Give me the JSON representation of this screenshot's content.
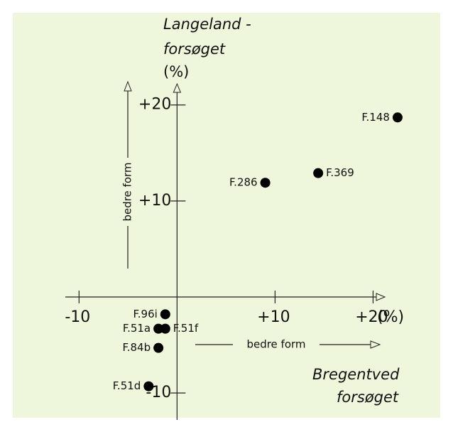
{
  "chart_data": {
    "type": "scatter",
    "y_title": [
      "Langeland -",
      "forsøget",
      "(%)"
    ],
    "x_title": [
      "Bregentved",
      "forsøget"
    ],
    "x_unit": "(%)",
    "annotations": [
      "bedre form",
      "bedre form"
    ],
    "point_labels": [
      "F.148",
      "F.369",
      "F.286",
      "F.96i",
      "F.51a",
      "F.51f",
      "F.84b",
      "F.51d"
    ],
    "x": [
      22.5,
      14.4,
      9.0,
      -1.2,
      -1.9,
      -1.2,
      -1.9,
      -2.9
    ],
    "values": [
      18.7,
      12.9,
      11.9,
      -1.8,
      -3.3,
      -3.3,
      -5.3,
      -9.3
    ],
    "color": "#000000",
    "xlim": [
      -11.4,
      21.2
    ],
    "ylim": [
      -12.8,
      22.2
    ],
    "xticks": [
      {
        "value": -10,
        "label": "-10"
      },
      {
        "value": 10,
        "label": "+10"
      },
      {
        "value": 20,
        "label": "+20"
      }
    ],
    "yticks": [
      {
        "value": 20,
        "label": "+20"
      },
      {
        "value": 10,
        "label": "+10"
      },
      {
        "value": -10,
        "label": "-10"
      }
    ]
  }
}
